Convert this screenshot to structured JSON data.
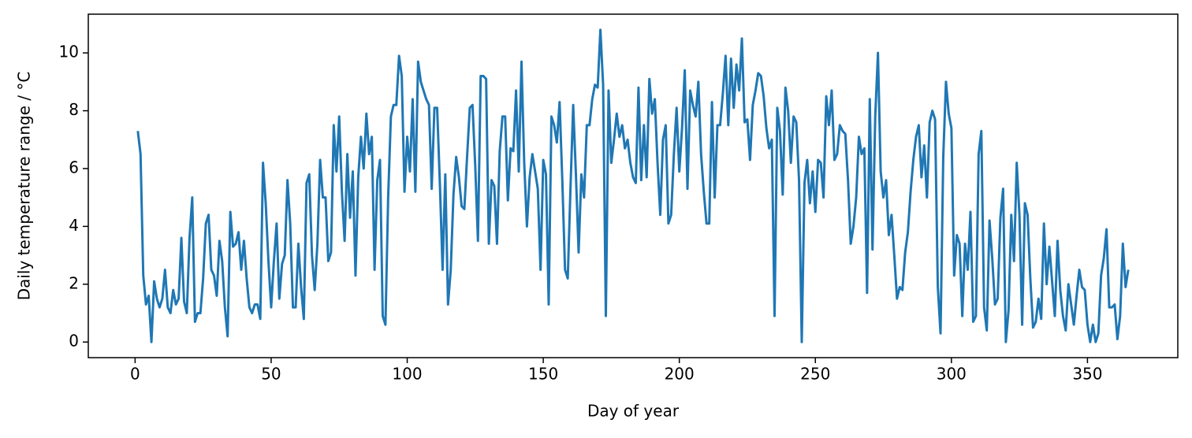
{
  "chart_data": {
    "type": "line",
    "xlabel": "Day of year",
    "ylabel": "Daily temperature range / °C",
    "xlim": [
      -17.2,
      383.2
    ],
    "xticks": [
      0,
      50,
      100,
      150,
      200,
      250,
      300,
      350
    ],
    "ylim": [
      -0.54,
      11.34
    ],
    "yticks": [
      0,
      2,
      4,
      6,
      8,
      10
    ],
    "x": [
      1,
      2,
      3,
      4,
      5,
      6,
      7,
      8,
      9,
      10,
      11,
      12,
      13,
      14,
      15,
      16,
      17,
      18,
      19,
      20,
      21,
      22,
      23,
      24,
      25,
      26,
      27,
      28,
      29,
      30,
      31,
      32,
      33,
      34,
      35,
      36,
      37,
      38,
      39,
      40,
      41,
      42,
      43,
      44,
      45,
      46,
      47,
      48,
      49,
      50,
      51,
      52,
      53,
      54,
      55,
      56,
      57,
      58,
      59,
      60,
      61,
      62,
      63,
      64,
      65,
      66,
      67,
      68,
      69,
      70,
      71,
      72,
      73,
      74,
      75,
      76,
      77,
      78,
      79,
      80,
      81,
      82,
      83,
      84,
      85,
      86,
      87,
      88,
      89,
      90,
      91,
      92,
      93,
      94,
      95,
      96,
      97,
      98,
      99,
      100,
      101,
      102,
      103,
      104,
      105,
      106,
      107,
      108,
      109,
      110,
      111,
      112,
      113,
      114,
      115,
      116,
      117,
      118,
      119,
      120,
      121,
      122,
      123,
      124,
      125,
      126,
      127,
      128,
      129,
      130,
      131,
      132,
      133,
      134,
      135,
      136,
      137,
      138,
      139,
      140,
      141,
      142,
      143,
      144,
      145,
      146,
      147,
      148,
      149,
      150,
      151,
      152,
      153,
      154,
      155,
      156,
      157,
      158,
      159,
      160,
      161,
      162,
      163,
      164,
      165,
      166,
      167,
      168,
      169,
      170,
      171,
      172,
      173,
      174,
      175,
      176,
      177,
      178,
      179,
      180,
      181,
      182,
      183,
      184,
      185,
      186,
      187,
      188,
      189,
      190,
      191,
      192,
      193,
      194,
      195,
      196,
      197,
      198,
      199,
      200,
      201,
      202,
      203,
      204,
      205,
      206,
      207,
      208,
      209,
      210,
      211,
      212,
      213,
      214,
      215,
      216,
      217,
      218,
      219,
      220,
      221,
      222,
      223,
      224,
      225,
      226,
      227,
      228,
      229,
      230,
      231,
      232,
      233,
      234,
      235,
      236,
      237,
      238,
      239,
      240,
      241,
      242,
      243,
      244,
      245,
      246,
      247,
      248,
      249,
      250,
      251,
      252,
      253,
      254,
      255,
      256,
      257,
      258,
      259,
      260,
      261,
      262,
      263,
      264,
      265,
      266,
      267,
      268,
      269,
      270,
      271,
      272,
      273,
      274,
      275,
      276,
      277,
      278,
      279,
      280,
      281,
      282,
      283,
      284,
      285,
      286,
      287,
      288,
      289,
      290,
      291,
      292,
      293,
      294,
      295,
      296,
      297,
      298,
      299,
      300,
      301,
      302,
      303,
      304,
      305,
      306,
      307,
      308,
      309,
      310,
      311,
      312,
      313,
      314,
      315,
      316,
      317,
      318,
      319,
      320,
      321,
      322,
      323,
      324,
      325,
      326,
      327,
      328,
      329,
      330,
      331,
      332,
      333,
      334,
      335,
      336,
      337,
      338,
      339,
      340,
      341,
      342,
      343,
      344,
      345,
      346,
      347,
      348,
      349,
      350,
      351,
      352,
      353,
      354,
      355,
      356,
      357,
      358,
      359,
      360,
      361,
      362,
      363,
      364,
      365
    ],
    "series": [
      {
        "color": "#1f77b4",
        "values": [
          7.3,
          6.5,
          2.3,
          1.3,
          1.6,
          0.0,
          2.1,
          1.5,
          1.2,
          1.5,
          2.5,
          1.2,
          1.0,
          1.8,
          1.3,
          1.5,
          3.6,
          1.4,
          1.0,
          3.6,
          5.0,
          0.7,
          1.0,
          1.0,
          2.2,
          4.1,
          4.4,
          2.5,
          2.3,
          1.6,
          3.5,
          2.8,
          1.2,
          0.2,
          4.5,
          3.3,
          3.4,
          3.8,
          2.5,
          3.5,
          2.2,
          1.2,
          1.0,
          1.3,
          1.3,
          0.8,
          6.2,
          4.8,
          2.8,
          1.2,
          2.8,
          4.1,
          1.5,
          2.7,
          3.0,
          5.6,
          4.1,
          1.2,
          1.2,
          3.4,
          1.9,
          0.8,
          5.5,
          5.8,
          3.0,
          1.8,
          3.4,
          6.3,
          5.0,
          5.0,
          2.8,
          3.1,
          7.5,
          5.9,
          7.8,
          5.2,
          3.5,
          6.5,
          4.3,
          5.9,
          2.3,
          5.7,
          7.1,
          6.0,
          7.9,
          6.5,
          7.1,
          2.5,
          5.6,
          6.3,
          0.9,
          0.6,
          5.0,
          7.8,
          8.2,
          8.2,
          9.9,
          9.2,
          5.2,
          7.1,
          5.9,
          8.4,
          5.2,
          9.7,
          9.0,
          8.7,
          8.4,
          8.2,
          5.3,
          8.1,
          8.1,
          5.5,
          2.5,
          5.8,
          1.3,
          2.5,
          5.1,
          6.4,
          5.7,
          4.7,
          4.6,
          6.4,
          8.1,
          8.2,
          6.1,
          3.5,
          9.2,
          9.2,
          9.1,
          3.4,
          5.6,
          5.4,
          3.4,
          6.6,
          7.8,
          7.8,
          4.9,
          6.7,
          6.6,
          8.7,
          5.9,
          9.7,
          6.2,
          4.0,
          5.7,
          6.5,
          5.9,
          5.3,
          2.5,
          6.3,
          5.8,
          1.3,
          7.8,
          7.5,
          6.9,
          8.3,
          5.6,
          2.5,
          2.2,
          5.3,
          8.2,
          5.8,
          3.1,
          5.8,
          5.0,
          7.5,
          7.5,
          8.4,
          8.9,
          8.8,
          10.8,
          8.9,
          0.9,
          8.7,
          6.2,
          7.0,
          7.9,
          7.1,
          7.5,
          6.7,
          7.0,
          6.2,
          5.7,
          5.5,
          8.8,
          5.6,
          7.5,
          5.7,
          9.1,
          7.9,
          8.4,
          6.2,
          4.4,
          7.0,
          7.5,
          4.1,
          4.4,
          6.5,
          8.1,
          5.9,
          7.4,
          9.4,
          5.3,
          8.7,
          8.2,
          7.8,
          9.0,
          6.5,
          5.2,
          4.1,
          4.1,
          8.3,
          5.0,
          7.5,
          7.5,
          8.6,
          9.9,
          7.5,
          9.8,
          8.1,
          9.6,
          8.7,
          10.5,
          7.6,
          7.7,
          6.3,
          8.2,
          8.7,
          9.3,
          9.2,
          8.5,
          7.4,
          6.7,
          7.0,
          0.9,
          8.1,
          7.3,
          5.1,
          8.8,
          8.0,
          6.2,
          7.8,
          7.6,
          5.6,
          0.0,
          5.5,
          6.3,
          4.8,
          5.9,
          4.5,
          6.3,
          6.2,
          5.0,
          8.5,
          7.5,
          8.7,
          6.3,
          6.5,
          7.5,
          7.3,
          7.2,
          5.6,
          3.4,
          4.0,
          5.0,
          7.1,
          6.5,
          6.7,
          1.7,
          8.4,
          3.2,
          7.8,
          10.0,
          5.9,
          5.0,
          5.6,
          3.7,
          4.4,
          3.0,
          1.5,
          1.9,
          1.8,
          3.1,
          3.8,
          5.2,
          6.3,
          7.1,
          7.5,
          5.7,
          6.8,
          5.0,
          7.6,
          8.0,
          7.7,
          1.9,
          0.3,
          6.4,
          9.0,
          7.9,
          7.4,
          2.3,
          3.7,
          3.4,
          0.9,
          3.4,
          2.5,
          4.5,
          0.7,
          0.9,
          6.5,
          7.3,
          1.2,
          0.4,
          4.2,
          2.9,
          1.3,
          1.5,
          4.3,
          5.3,
          0.0,
          1.1,
          4.4,
          2.8,
          6.2,
          4.4,
          0.6,
          4.8,
          4.4,
          2.2,
          0.5,
          0.7,
          1.5,
          0.8,
          4.1,
          2.0,
          3.3,
          2.1,
          0.9,
          3.5,
          1.8,
          0.9,
          0.4,
          2.0,
          1.3,
          0.6,
          1.6,
          2.5,
          1.9,
          1.8,
          0.6,
          0.0,
          0.6,
          0.0,
          0.3,
          2.3,
          2.9,
          3.9,
          1.2,
          1.2,
          1.3,
          0.1,
          0.9,
          3.4,
          1.9,
          2.5
        ]
      }
    ]
  }
}
